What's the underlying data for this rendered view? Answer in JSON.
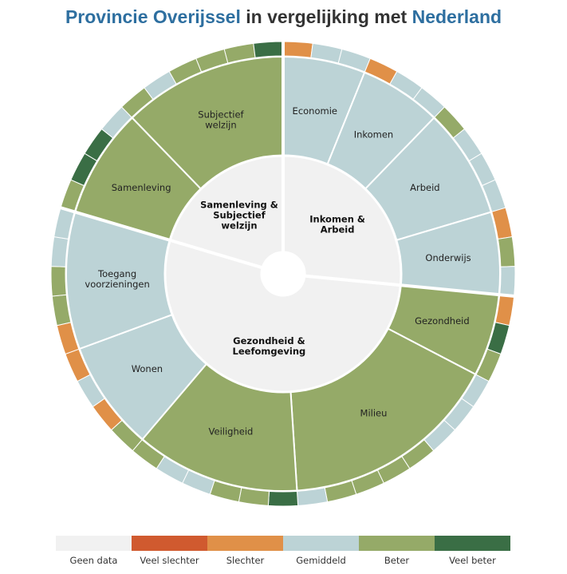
{
  "title": {
    "part1": "Provincie Overijssel",
    "part2": " in vergelijking met ",
    "part3": "Nederland"
  },
  "colors": {
    "geen_data": "#f1f1f1",
    "veel_slechter": "#d05a2f",
    "slechter": "#e09048",
    "gemiddeld": "#bcd3d6",
    "beter": "#95aa68",
    "veel_beter": "#3a6e45"
  },
  "legend": [
    {
      "label": "Geen data",
      "level": "geen_data"
    },
    {
      "label": "Veel slechter",
      "level": "veel_slechter"
    },
    {
      "label": "Slechter",
      "level": "slechter"
    },
    {
      "label": "Gemiddeld",
      "level": "gemiddeld"
    },
    {
      "label": "Beter",
      "level": "beter"
    },
    {
      "label": "Veel beter",
      "level": "veel_beter"
    }
  ],
  "chart_data": {
    "type": "sunburst",
    "categories": [
      {
        "label": "Inkomen & Arbeid",
        "lines": [
          "Inkomen &",
          "Arbeid"
        ]
      },
      {
        "label": "Gezondheid & Leefomgeving",
        "lines": [
          "Gezondheid &",
          "Leefomgeving"
        ]
      },
      {
        "label": "Samenleving & Subjectief welzijn",
        "lines": [
          "Samenleving &",
          "Subjectief",
          "welzijn"
        ]
      }
    ],
    "themes": [
      {
        "label": "Economie",
        "lines": [
          "Economie"
        ],
        "level": "gemiddeld",
        "category": 0,
        "indicators": [
          "slechter",
          "gemiddeld",
          "gemiddeld"
        ]
      },
      {
        "label": "Inkomen",
        "lines": [
          "Inkomen"
        ],
        "level": "gemiddeld",
        "category": 0,
        "indicators": [
          "slechter",
          "gemiddeld",
          "gemiddeld"
        ]
      },
      {
        "label": "Arbeid",
        "lines": [
          "Arbeid"
        ],
        "level": "gemiddeld",
        "category": 0,
        "indicators": [
          "beter",
          "gemiddeld",
          "gemiddeld",
          "gemiddeld"
        ]
      },
      {
        "label": "Onderwijs",
        "lines": [
          "Onderwijs"
        ],
        "level": "gemiddeld",
        "category": 0,
        "indicators": [
          "slechter",
          "beter",
          "gemiddeld"
        ]
      },
      {
        "label": "Gezondheid",
        "lines": [
          "Gezondheid"
        ],
        "level": "beter",
        "category": 1,
        "indicators": [
          "slechter",
          "veel_beter",
          "beter"
        ]
      },
      {
        "label": "Milieu",
        "lines": [
          "Milieu"
        ],
        "level": "beter",
        "category": 1,
        "indicators": [
          "gemiddeld",
          "gemiddeld",
          "gemiddeld",
          "beter",
          "beter",
          "beter",
          "beter",
          "gemiddeld"
        ]
      },
      {
        "label": "Veiligheid",
        "lines": [
          "Veiligheid"
        ],
        "level": "beter",
        "category": 1,
        "indicators": [
          "veel_beter",
          "beter",
          "beter",
          "gemiddeld",
          "gemiddeld",
          "beter"
        ]
      },
      {
        "label": "Wonen",
        "lines": [
          "Wonen"
        ],
        "level": "gemiddeld",
        "category": 1,
        "indicators": [
          "beter",
          "slechter",
          "gemiddeld",
          "slechter"
        ]
      },
      {
        "label": "Toegang voorzieningen",
        "lines": [
          "Toegang",
          "voorzieningen"
        ],
        "level": "gemiddeld",
        "category": 1,
        "indicators": [
          "slechter",
          "beter",
          "beter",
          "gemiddeld",
          "gemiddeld"
        ]
      },
      {
        "label": "Samenleving",
        "lines": [
          "Samenleving"
        ],
        "level": "beter",
        "category": 2,
        "indicators": [
          "beter",
          "veel_beter",
          "veel_beter",
          "gemiddeld"
        ]
      },
      {
        "label": "Subjectief welzijn",
        "lines": [
          "Subjectief",
          "welzijn"
        ],
        "level": "beter",
        "category": 2,
        "indicators": [
          "beter",
          "gemiddeld",
          "beter",
          "beter",
          "beter",
          "veel_beter"
        ]
      }
    ]
  }
}
